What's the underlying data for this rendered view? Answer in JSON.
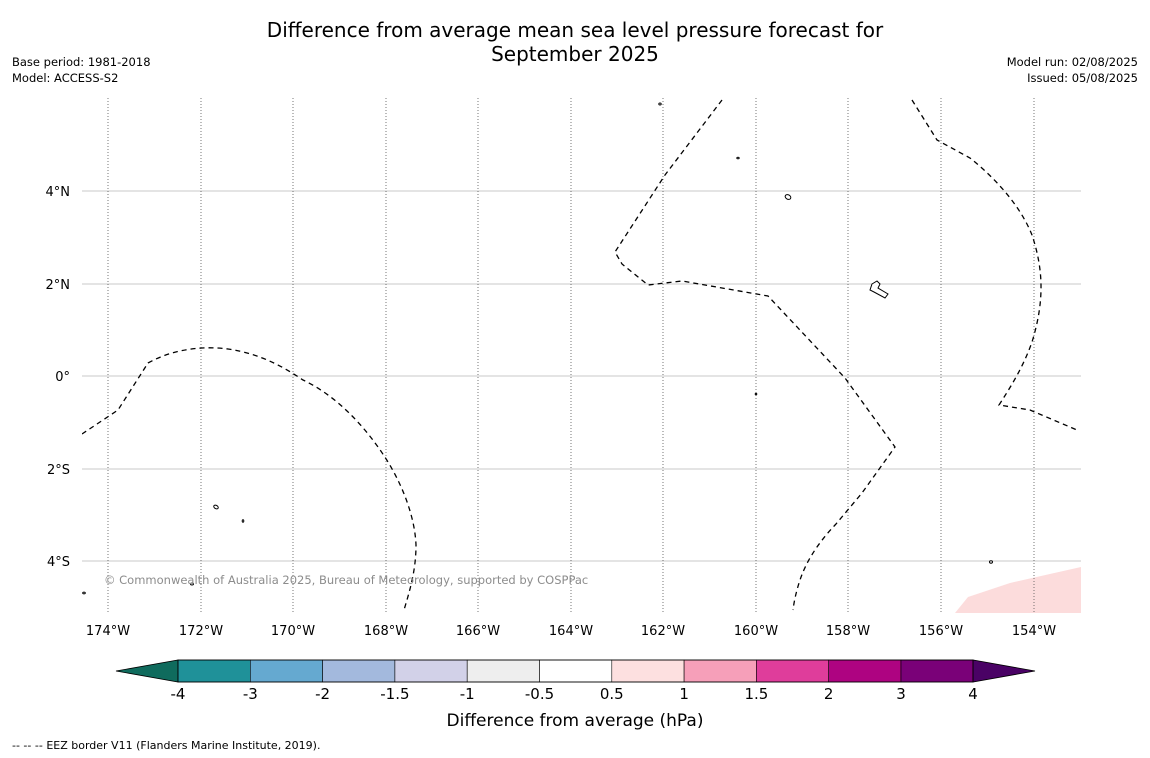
{
  "title": {
    "line1": "Difference from average mean sea level pressure forecast for",
    "line2": "September 2025"
  },
  "meta": {
    "base_period": "Base period: 1981-2018",
    "model": "Model: ACCESS-S2",
    "model_run": "Model run: 02/08/2025",
    "issued": "Issued: 05/08/2025"
  },
  "map": {
    "lon_labels": [
      "174°W",
      "172°W",
      "170°W",
      "168°W",
      "166°W",
      "164°W",
      "162°W",
      "160°W",
      "158°W",
      "156°W",
      "154°W"
    ],
    "lat_labels": [
      "4°N",
      "2°N",
      "0°",
      "2°S",
      "4°S"
    ],
    "copyright": "© Commonwealth of Australia 2025, Bureau of Meteorology, supported by COSPPac",
    "line_color": "#000000",
    "positive_fill": "#fcdcdc"
  },
  "colorbar": {
    "label": "Difference from average (hPa)",
    "ticks": [
      "-4",
      "-3",
      "-2",
      "-1.5",
      "-1",
      "-0.5",
      "0.5",
      "1",
      "1.5",
      "2",
      "3",
      "4"
    ],
    "colors": [
      "#0f6b5d",
      "#1f9199",
      "#65a9d0",
      "#a3b9dd",
      "#d2d1e8",
      "#eeeeee",
      "#ffffff",
      "#fde0e0",
      "#f69fb9",
      "#df3d9b",
      "#ae0381",
      "#7a0178",
      "#4a0265"
    ]
  },
  "footer": {
    "legend_symbol": "--  --  --",
    "legend_text": "EEZ border V11 (Flanders Marine Institute, 2019)."
  }
}
